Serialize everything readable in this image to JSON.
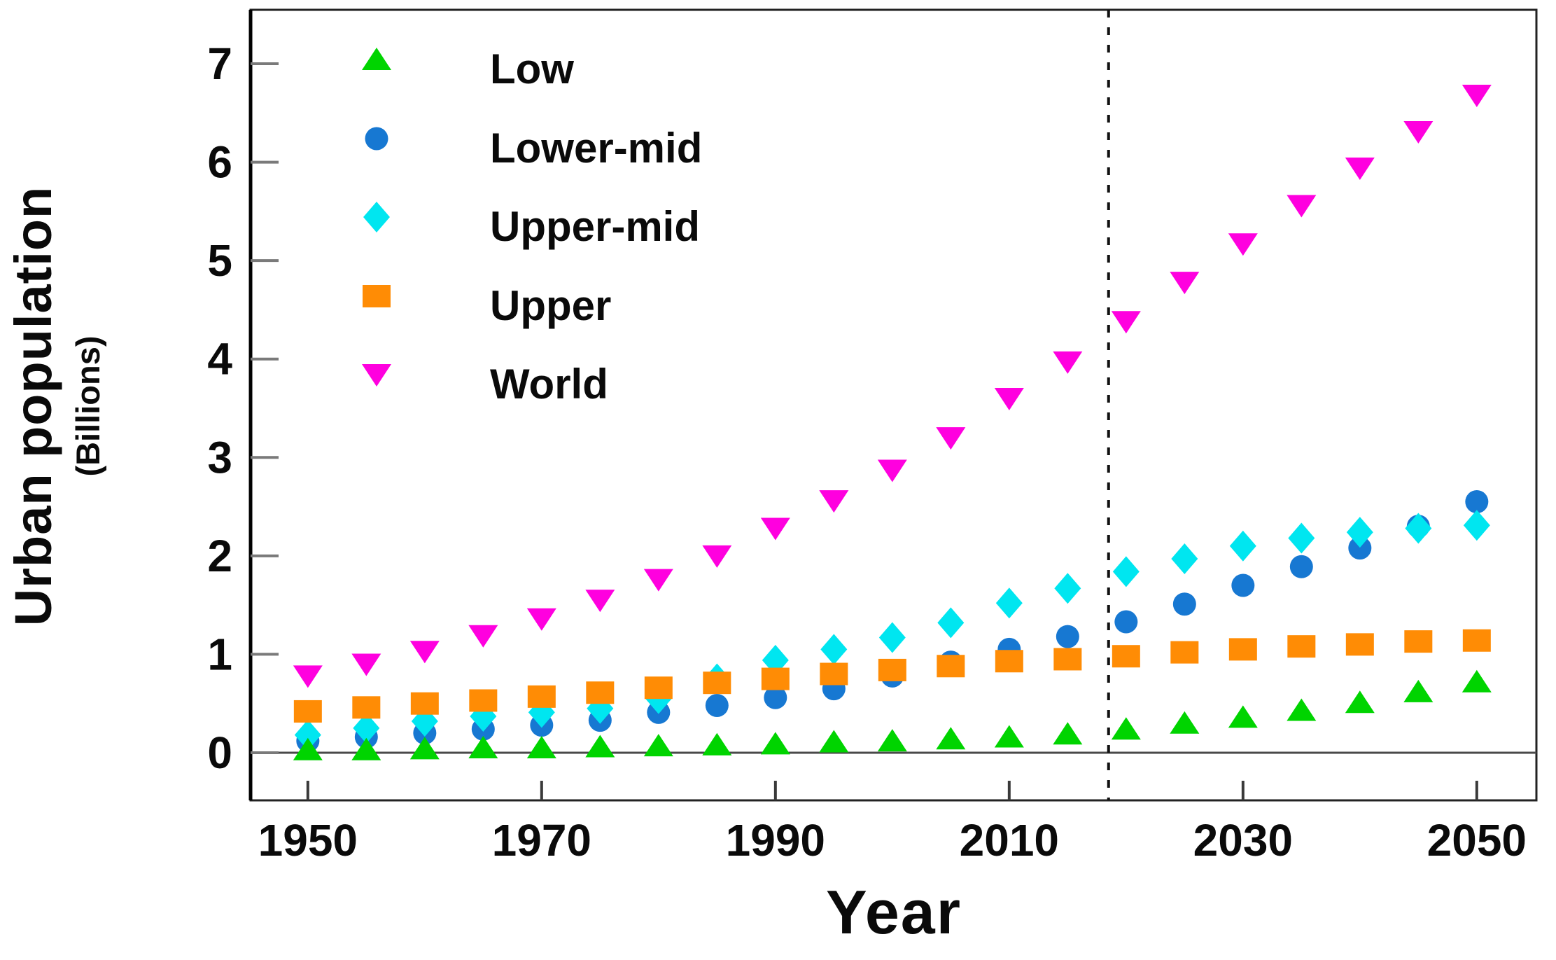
{
  "chart_data": {
    "type": "scatter",
    "title": "",
    "xlabel": "Year",
    "ylabel": "Urban population",
    "ylabel_units": "(Billions)",
    "xlim": [
      1945.1,
      2055.1
    ],
    "ylim": [
      -0.484,
      7.548
    ],
    "x_ticks": [
      1950,
      1970,
      1990,
      2010,
      2030,
      2050
    ],
    "y_ticks": [
      0,
      1,
      2,
      3,
      4,
      5,
      6,
      7
    ],
    "grid": false,
    "legend_position": "upper-left-inside",
    "divider_year": 2018.5,
    "x": [
      1950,
      1955,
      1960,
      1965,
      1970,
      1975,
      1980,
      1985,
      1990,
      1995,
      2000,
      2005,
      2010,
      2015,
      2020,
      2025,
      2030,
      2035,
      2040,
      2045,
      2050
    ],
    "series": [
      {
        "name": "Lower-mid",
        "marker": "circle",
        "color": "#1778d2",
        "values": [
          0.12,
          0.16,
          0.2,
          0.24,
          0.28,
          0.33,
          0.41,
          0.48,
          0.56,
          0.65,
          0.78,
          0.92,
          1.05,
          1.18,
          1.33,
          1.51,
          1.7,
          1.89,
          2.08,
          2.3,
          2.55
        ]
      },
      {
        "name": "Upper-mid",
        "marker": "diamond",
        "color": "#00e6f0",
        "values": [
          0.18,
          0.25,
          0.32,
          0.37,
          0.41,
          0.45,
          0.55,
          0.75,
          0.94,
          1.05,
          1.17,
          1.32,
          1.52,
          1.67,
          1.84,
          1.97,
          2.1,
          2.18,
          2.24,
          2.28,
          2.31
        ]
      },
      {
        "name": "Upper",
        "marker": "square",
        "color": "#ff8c05",
        "values": [
          0.42,
          0.46,
          0.5,
          0.53,
          0.57,
          0.61,
          0.66,
          0.71,
          0.75,
          0.8,
          0.84,
          0.88,
          0.93,
          0.95,
          0.98,
          1.02,
          1.05,
          1.08,
          1.1,
          1.13,
          1.14
        ]
      },
      {
        "name": "Low",
        "marker": "triangle-up",
        "color": "#00d400",
        "values": [
          0.03,
          0.03,
          0.04,
          0.05,
          0.05,
          0.06,
          0.07,
          0.08,
          0.09,
          0.11,
          0.12,
          0.14,
          0.16,
          0.19,
          0.24,
          0.3,
          0.36,
          0.43,
          0.51,
          0.62,
          0.72
        ]
      },
      {
        "name": "World",
        "marker": "triangle-down",
        "color": "#ff00df",
        "values": [
          0.78,
          0.9,
          1.03,
          1.19,
          1.36,
          1.55,
          1.76,
          2.0,
          2.28,
          2.56,
          2.87,
          3.2,
          3.6,
          3.97,
          4.38,
          4.78,
          5.17,
          5.56,
          5.94,
          6.31,
          6.68
        ]
      }
    ]
  },
  "legend": {
    "items": [
      {
        "label": "Low",
        "marker": "triangle-up",
        "color": "#00d400"
      },
      {
        "label": "Lower-mid",
        "marker": "circle",
        "color": "#1778d2"
      },
      {
        "label": "Upper-mid",
        "marker": "diamond",
        "color": "#00e6f0"
      },
      {
        "label": "Upper",
        "marker": "square",
        "color": "#ff8c05"
      },
      {
        "label": "World",
        "marker": "triangle-down",
        "color": "#ff00df"
      }
    ]
  },
  "style_colors": {
    "box_stroke": "#222222",
    "y_tick_stroke": "#7a7a7a",
    "x_tick_stroke": "#3a3a3a",
    "zero_line": "#4a4a4a",
    "divider": "#111111"
  }
}
